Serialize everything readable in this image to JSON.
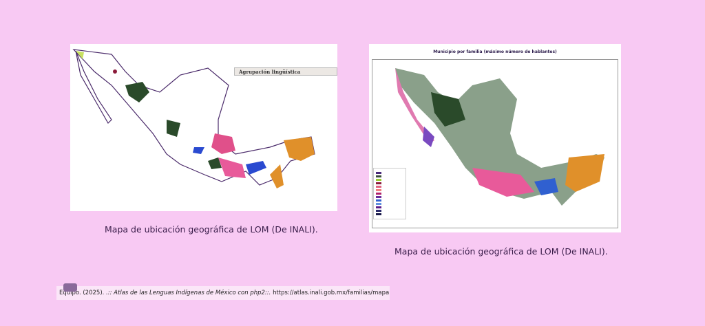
{
  "left_map": {
    "legend_header": "Agrupación lingüística",
    "caption": "Mapa de ubicación geográfica de LOM (De INALI)."
  },
  "right_map": {
    "title": "Municipio por familia (máximo número de hablantes)",
    "legend_colors": [
      "#4a2a7a",
      "#3a4a3a",
      "#9acd32",
      "#8b1a3a",
      "#e06080",
      "#f08080",
      "#b0206a",
      "#6a2a9a",
      "#3060d0",
      "#6090e0",
      "#5a1a8a",
      "#2a2a6a",
      "#1a1a4a"
    ],
    "caption": "Mapa de ubicación geográfica de LOM (De INALI)."
  },
  "reference": {
    "license_icon": "creative-commons-icon",
    "author_year": "Equipo. (2025).",
    "title": ".:: Atlas de las Lenguas Indígenas de México con php2::.",
    "url": "https://atlas.inali.gob.mx/familias/mapa"
  }
}
